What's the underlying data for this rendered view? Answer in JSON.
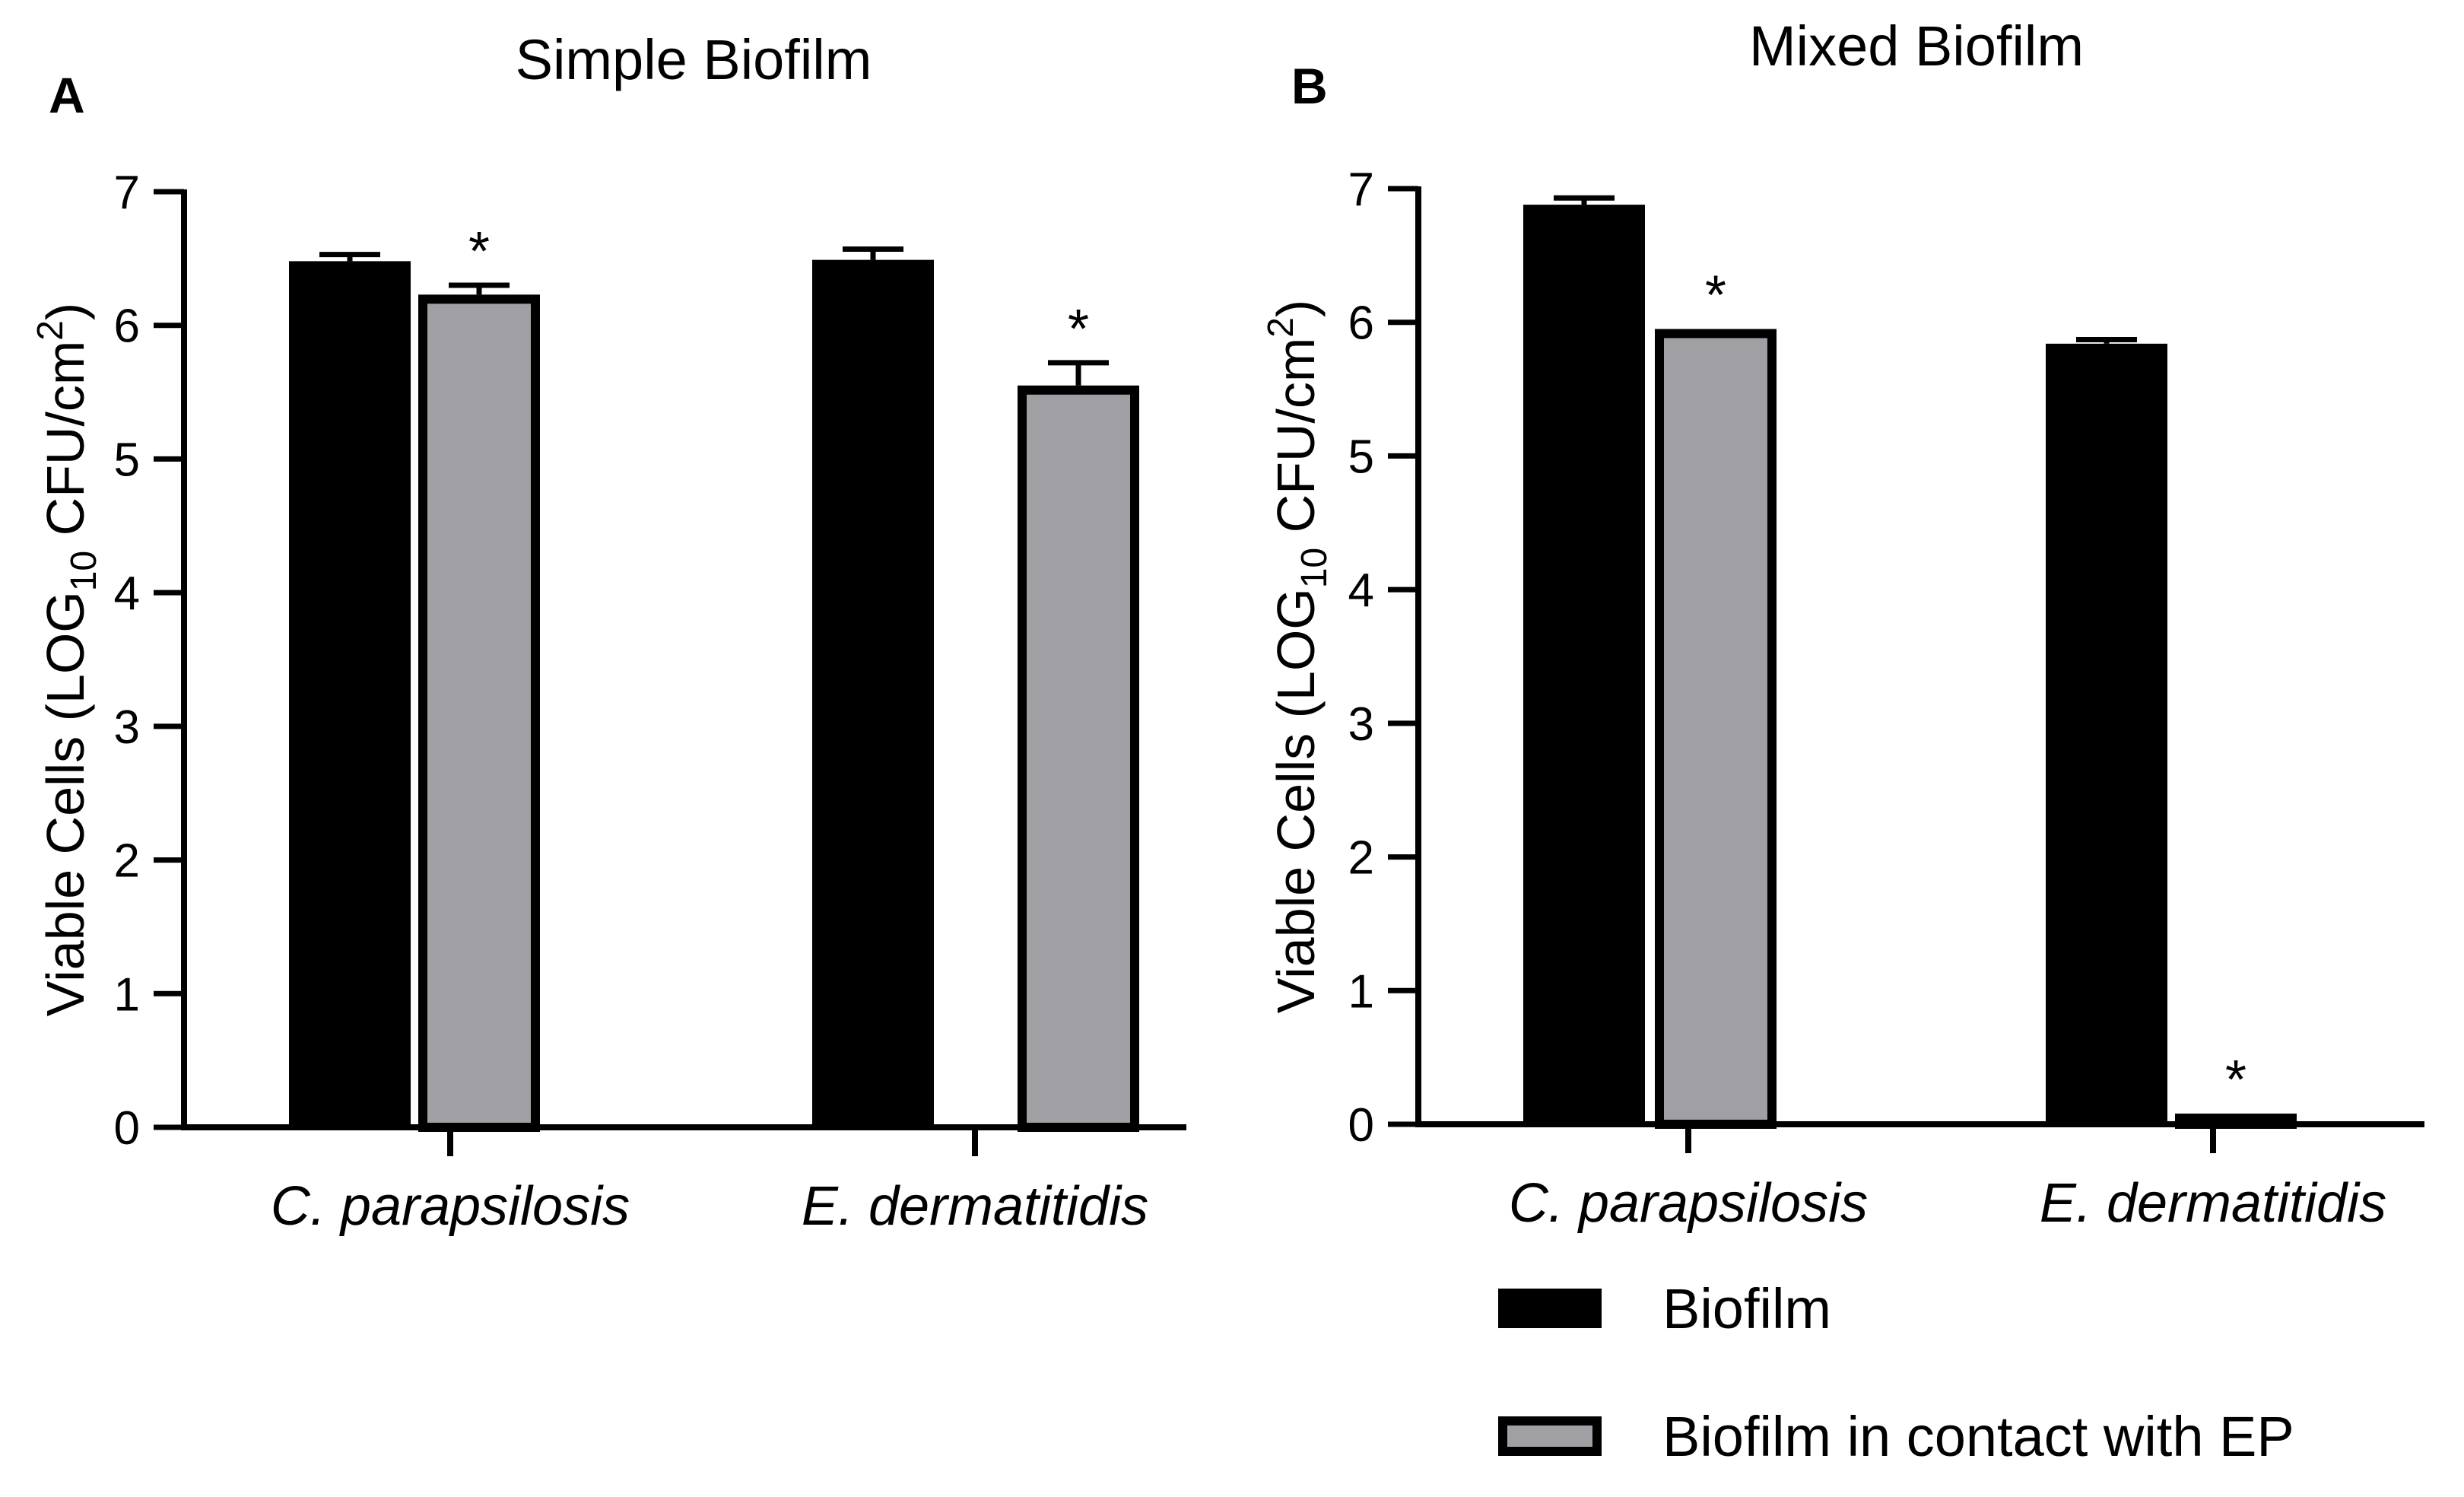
{
  "chart_data": [
    {
      "panel": "A",
      "type": "bar",
      "title": "Simple Biofilm",
      "ylabel": {
        "main": "Viable Cells (LOG",
        "sub": "10",
        "unit": " CFU/cm",
        "sup": "2",
        "close": ")"
      },
      "xlabel": "",
      "ylim": [
        0,
        7
      ],
      "yticks": [
        0,
        1,
        2,
        3,
        4,
        5,
        6,
        7
      ],
      "categories": [
        "C. parapsilosis",
        "E. dermatitidis"
      ],
      "series": [
        {
          "name": "Biofilm",
          "color": "#000000",
          "values": [
            6.48,
            6.49
          ],
          "errors": [
            0.05,
            0.08
          ],
          "significant": [
            false,
            false
          ]
        },
        {
          "name": "Biofilm in contact with EP",
          "color": "#a0a0a4",
          "values": [
            6.23,
            5.55
          ],
          "errors": [
            0.07,
            0.17
          ],
          "significant": [
            true,
            true
          ]
        }
      ],
      "significance_marker": "*"
    },
    {
      "panel": "B",
      "type": "bar",
      "title": "Mixed Biofilm",
      "ylabel": {
        "main": "Viable Cells (LOG",
        "sub": "10",
        "unit": " CFU/cm",
        "sup": "2",
        "close": ")"
      },
      "xlabel": "",
      "ylim": [
        0,
        7
      ],
      "yticks": [
        0,
        1,
        2,
        3,
        4,
        5,
        6,
        7
      ],
      "categories": [
        "C. parapsilosis",
        "E. dermatitidis"
      ],
      "series": [
        {
          "name": "Biofilm",
          "color": "#000000",
          "values": [
            6.88,
            5.84
          ],
          "errors": [
            0.05,
            0.03
          ],
          "significant": [
            false,
            false
          ]
        },
        {
          "name": "Biofilm in contact with EP",
          "color": "#a0a0a4",
          "values": [
            5.95,
            0.08
          ],
          "errors": [
            0.0,
            0.0
          ],
          "significant": [
            true,
            true
          ]
        }
      ],
      "significance_marker": "*"
    }
  ],
  "legend": {
    "placement": "bottom-right",
    "items": [
      {
        "label": "Biofilm",
        "color": "#000000"
      },
      {
        "label": "Biofilm in contact with EP",
        "color": "#a0a0a4"
      }
    ]
  }
}
